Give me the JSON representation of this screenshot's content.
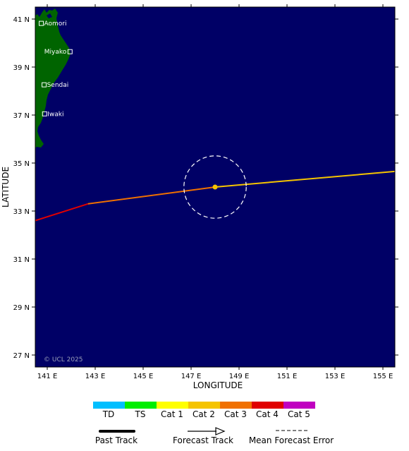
{
  "map": {
    "copyright": "© UCL 2025",
    "axes": {
      "x_title": "LONGITUDE",
      "y_title": "LATITUDE",
      "lon_range": [
        140.5,
        155.5
      ],
      "lat_range": [
        26.5,
        41.5
      ],
      "x_ticks": [
        "141 E",
        "143 E",
        "145 E",
        "147 E",
        "149 E",
        "151 E",
        "153 E",
        "155 E"
      ],
      "x_tick_values": [
        141,
        143,
        145,
        147,
        149,
        151,
        153,
        155
      ],
      "y_ticks": [
        "41 N",
        "39 N",
        "37 N",
        "35 N",
        "33 N",
        "31 N",
        "29 N",
        "27 N"
      ],
      "y_tick_values": [
        41,
        39,
        37,
        35,
        33,
        31,
        29,
        27
      ]
    },
    "colors": {
      "ocean": "#000066",
      "land": "#006400",
      "TD": "#00bfff",
      "TS": "#00ee00",
      "Cat 1": "#ffff00",
      "Cat 2": "#f5c400",
      "Cat 3": "#f07000",
      "Cat 4": "#e00000",
      "Cat 5": "#c000c0"
    },
    "cities": [
      {
        "name": "Aomori",
        "lon": 140.75,
        "lat": 40.82
      },
      {
        "name": "Miyako",
        "lon": 141.95,
        "lat": 39.64
      },
      {
        "name": "Sendai",
        "lon": 140.87,
        "lat": 38.26
      },
      {
        "name": "Iwaki",
        "lon": 140.89,
        "lat": 37.05
      }
    ],
    "track": {
      "past": [
        {
          "lon": 140.5,
          "lat": 32.6,
          "category": "Cat 4"
        },
        {
          "lon": 142.7,
          "lat": 33.3,
          "category": "Cat 3"
        },
        {
          "lon": 148.0,
          "lat": 34.0,
          "category": "Cat 2"
        }
      ],
      "forecast": [
        {
          "lon": 148.0,
          "lat": 34.0,
          "category": "Cat 2"
        },
        {
          "lon": 155.5,
          "lat": 34.65,
          "category": "Cat 2"
        }
      ],
      "current_position": {
        "lon": 148.0,
        "lat": 34.0,
        "category": "Cat 2"
      },
      "error_radius_deg": 1.3
    }
  },
  "legend": {
    "categories": [
      "TD",
      "TS",
      "Cat 1",
      "Cat 2",
      "Cat 3",
      "Cat 4",
      "Cat 5"
    ],
    "past_track_label": "Past Track",
    "forecast_track_label": "Forecast Track",
    "error_label": "Mean Forecast Error"
  }
}
